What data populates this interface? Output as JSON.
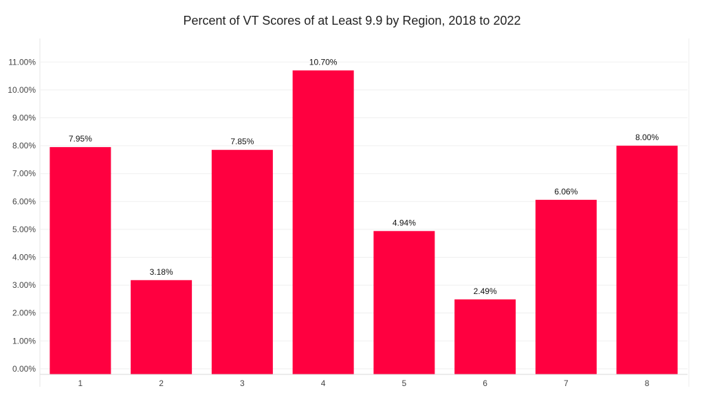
{
  "chart_data": {
    "type": "bar",
    "title": "Percent of VT Scores of at Least 9.9 by Region, 2018 to 2022",
    "xlabel": "",
    "ylabel": "",
    "categories": [
      "1",
      "2",
      "3",
      "4",
      "5",
      "6",
      "7",
      "8"
    ],
    "values": [
      7.95,
      3.18,
      7.85,
      10.7,
      4.94,
      2.49,
      6.06,
      8.0
    ],
    "data_labels": [
      "7.95%",
      "3.18%",
      "7.85%",
      "10.70%",
      "4.94%",
      "2.49%",
      "6.06%",
      "8.00%"
    ],
    "ylim": [
      -0.2,
      11.5
    ],
    "yticks": [
      0,
      1,
      2,
      3,
      4,
      5,
      6,
      7,
      8,
      9,
      10,
      11
    ],
    "ytick_labels": [
      "0.00%",
      "1.00%",
      "2.00%",
      "3.00%",
      "4.00%",
      "5.00%",
      "6.00%",
      "7.00%",
      "8.00%",
      "9.00%",
      "10.00%",
      "11.00%"
    ],
    "grid": true,
    "legend": "none",
    "bar_color": "#ff0040"
  }
}
